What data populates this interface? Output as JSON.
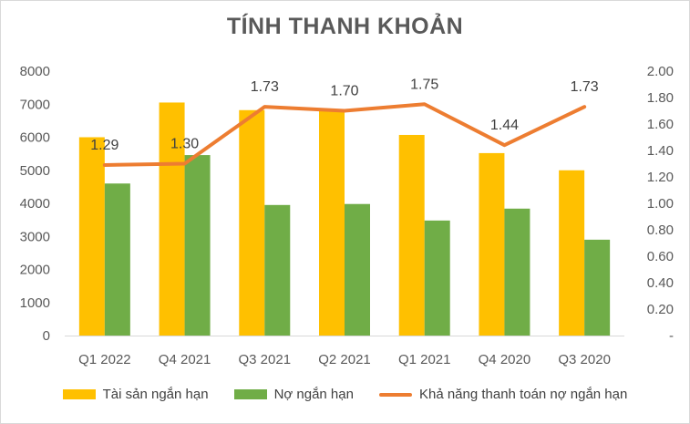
{
  "chart_data": {
    "type": "bar",
    "title": "TÍNH THANH KHOẢN",
    "categories": [
      "Q1 2022",
      "Q4 2021",
      "Q3 2021",
      "Q2 2021",
      "Q1 2021",
      "Q4 2020",
      "Q3 2020"
    ],
    "y_ticks": [
      "0",
      "1000",
      "2000",
      "3000",
      "4000",
      "5000",
      "6000",
      "7000",
      "8000"
    ],
    "y2_ticks": [
      "-",
      "0.20",
      "0.40",
      "0.60",
      "0.80",
      "1.00",
      "1.20",
      "1.40",
      "1.60",
      "1.80",
      "2.00"
    ],
    "ylim": [
      0,
      8000
    ],
    "y2lim": [
      0,
      2.0
    ],
    "grid": false,
    "legend_position": "bottom",
    "series": [
      {
        "name": "Tài sản ngắn hạn",
        "type": "bar",
        "axis": "left",
        "color": "#FFC000",
        "values": [
          6000,
          7050,
          6820,
          6800,
          6070,
          5520,
          5000
        ]
      },
      {
        "name": "Nợ ngắn hạn",
        "type": "bar",
        "axis": "left",
        "color": "#70AD47",
        "values": [
          4600,
          5460,
          3950,
          3980,
          3480,
          3840,
          2900
        ]
      },
      {
        "name": "Khả năng thanh toán nợ ngắn hạn",
        "type": "line",
        "axis": "right",
        "color": "#ED7D31",
        "values": [
          1.29,
          1.3,
          1.73,
          1.7,
          1.75,
          1.44,
          1.73
        ],
        "labels": [
          "1.29",
          "1.30",
          "1.73",
          "1.70",
          "1.75",
          "1.44",
          "1.73"
        ]
      }
    ]
  }
}
